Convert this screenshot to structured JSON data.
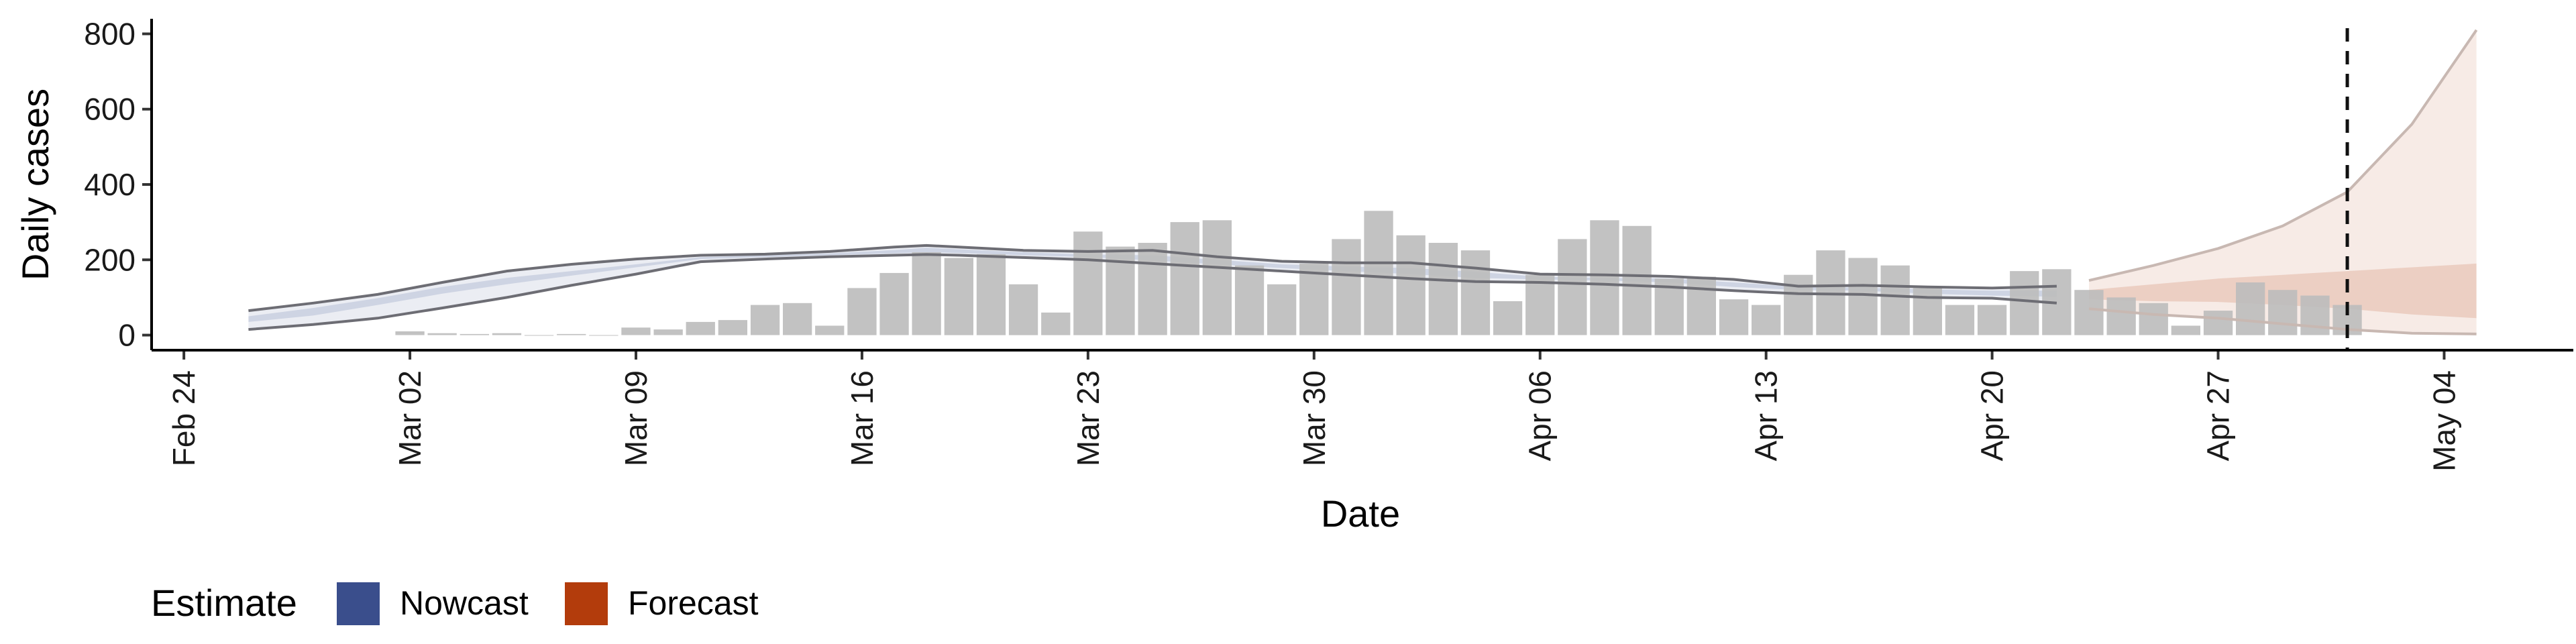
{
  "chart_data": {
    "type": "bar",
    "xlabel": "Date",
    "ylabel": "Daily cases",
    "ylim": [
      -40,
      840
    ],
    "yticks": [
      0,
      200,
      400,
      600,
      800
    ],
    "xlim": [
      "2020-02-23",
      "2020-05-08"
    ],
    "xticks": [
      "2020-02-24",
      "2020-03-02",
      "2020-03-09",
      "2020-03-16",
      "2020-03-23",
      "2020-03-30",
      "2020-04-06",
      "2020-04-13",
      "2020-04-20",
      "2020-04-27",
      "2020-05-04"
    ],
    "xtick_labels": [
      "Feb 24",
      "Mar 02",
      "Mar 09",
      "Mar 16",
      "Mar 23",
      "Mar 30",
      "Apr 06",
      "Apr 13",
      "Apr 20",
      "Apr 27",
      "May 04"
    ],
    "forecast_date": "2020-05-01",
    "bar_color": "#bdbdbd",
    "observed_cases": {
      "dates": [
        "2020-03-02",
        "2020-03-03",
        "2020-03-04",
        "2020-03-05",
        "2020-03-06",
        "2020-03-07",
        "2020-03-08",
        "2020-03-09",
        "2020-03-10",
        "2020-03-11",
        "2020-03-12",
        "2020-03-13",
        "2020-03-14",
        "2020-03-15",
        "2020-03-16",
        "2020-03-17",
        "2020-03-18",
        "2020-03-19",
        "2020-03-20",
        "2020-03-21",
        "2020-03-22",
        "2020-03-23",
        "2020-03-24",
        "2020-03-25",
        "2020-03-26",
        "2020-03-27",
        "2020-03-28",
        "2020-03-29",
        "2020-03-30",
        "2020-03-31",
        "2020-04-01",
        "2020-04-02",
        "2020-04-03",
        "2020-04-04",
        "2020-04-05",
        "2020-04-06",
        "2020-04-07",
        "2020-04-08",
        "2020-04-09",
        "2020-04-10",
        "2020-04-11",
        "2020-04-12",
        "2020-04-13",
        "2020-04-14",
        "2020-04-15",
        "2020-04-16",
        "2020-04-17",
        "2020-04-18",
        "2020-04-19",
        "2020-04-20",
        "2020-04-21",
        "2020-04-22",
        "2020-04-23",
        "2020-04-24",
        "2020-04-25",
        "2020-04-26",
        "2020-04-27",
        "2020-04-28",
        "2020-04-29",
        "2020-04-30",
        "2020-05-01"
      ],
      "values": [
        10,
        5,
        3,
        5,
        0,
        3,
        0,
        20,
        15,
        35,
        40,
        80,
        85,
        25,
        125,
        165,
        220,
        205,
        215,
        135,
        60,
        275,
        235,
        245,
        300,
        305,
        185,
        135,
        190,
        255,
        330,
        265,
        245,
        225,
        90,
        160,
        255,
        305,
        290,
        150,
        155,
        95,
        80,
        160,
        225,
        205,
        185,
        125,
        80,
        80,
        170,
        175,
        120,
        100,
        85,
        25,
        65,
        140,
        120,
        105,
        80
      ]
    },
    "series": [
      {
        "name": "Nowcast",
        "color": "#3a4e8c",
        "dates": [
          "2020-02-26",
          "2020-02-28",
          "2020-03-01",
          "2020-03-03",
          "2020-03-05",
          "2020-03-07",
          "2020-03-09",
          "2020-03-11",
          "2020-03-13",
          "2020-03-15",
          "2020-03-17",
          "2020-03-18",
          "2020-03-19",
          "2020-03-21",
          "2020-03-23",
          "2020-03-25",
          "2020-03-27",
          "2020-03-29",
          "2020-03-31",
          "2020-04-02",
          "2020-04-04",
          "2020-04-06",
          "2020-04-08",
          "2020-04-10",
          "2020-04-12",
          "2020-04-14",
          "2020-04-16",
          "2020-04-18",
          "2020-04-20",
          "2020-04-22"
        ],
        "lower": [
          15,
          28,
          45,
          72,
          100,
          132,
          162,
          195,
          202,
          208,
          212,
          214,
          212,
          206,
          200,
          190,
          180,
          170,
          160,
          150,
          142,
          140,
          135,
          128,
          118,
          110,
          108,
          100,
          98,
          85
        ],
        "lower_inner": [
          35,
          52,
          80,
          110,
          135,
          158,
          180,
          202,
          207,
          212,
          217,
          220,
          218,
          212,
          207,
          198,
          188,
          178,
          170,
          162,
          152,
          148,
          145,
          140,
          128,
          120,
          118,
          110,
          105,
          102
        ],
        "upper_inner": [
          50,
          72,
          98,
          128,
          152,
          170,
          188,
          207,
          212,
          217,
          226,
          232,
          228,
          220,
          214,
          212,
          200,
          188,
          182,
          178,
          168,
          155,
          152,
          150,
          140,
          128,
          126,
          122,
          118,
          118
        ],
        "upper": [
          65,
          85,
          108,
          140,
          170,
          188,
          202,
          212,
          215,
          222,
          234,
          238,
          234,
          225,
          222,
          225,
          208,
          196,
          192,
          192,
          178,
          162,
          160,
          156,
          148,
          130,
          132,
          128,
          125,
          130
        ]
      },
      {
        "name": "Forecast",
        "color": "#b33c0c",
        "dates": [
          "2020-04-23",
          "2020-04-25",
          "2020-04-27",
          "2020-04-29",
          "2020-05-01",
          "2020-05-03",
          "2020-05-05"
        ],
        "lower": [
          70,
          55,
          45,
          30,
          15,
          5,
          3
        ],
        "lower_inner": [
          95,
          90,
          88,
          80,
          70,
          55,
          45
        ],
        "upper_inner": [
          120,
          135,
          150,
          160,
          170,
          180,
          190
        ],
        "upper": [
          145,
          185,
          230,
          290,
          380,
          560,
          810
        ]
      }
    ],
    "legend": {
      "title": "Estimate",
      "placement": "bottom-left",
      "items": [
        {
          "label": "Nowcast",
          "color": "#3a4e8c"
        },
        {
          "label": "Forecast",
          "color": "#b33c0c"
        }
      ]
    },
    "grid": false
  }
}
